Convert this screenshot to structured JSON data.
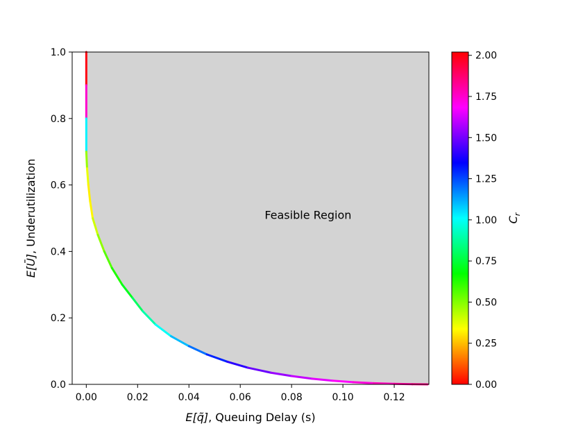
{
  "chart_data": {
    "type": "area",
    "xlabel_prefix": "E[q̃]",
    "xlabel_suffix": ", Queuing Delay (s)",
    "ylabel_prefix": "E[Ū]",
    "ylabel_suffix": ", Underutilization",
    "xlim": [
      -0.0055,
      0.1335
    ],
    "ylim": [
      0.0,
      1.0
    ],
    "x_ticks": [
      0.0,
      0.02,
      0.04,
      0.06,
      0.08,
      0.1,
      0.12
    ],
    "x_tick_labels": [
      "0.00",
      "0.02",
      "0.04",
      "0.06",
      "0.08",
      "0.10",
      "0.12"
    ],
    "y_ticks": [
      0.0,
      0.2,
      0.4,
      0.6,
      0.8,
      1.0
    ],
    "y_tick_labels": [
      "0.0",
      "0.2",
      "0.4",
      "0.6",
      "0.8",
      "1.0"
    ],
    "annotation": {
      "text": "Feasible Region",
      "x": 0.0695,
      "y": 0.51
    },
    "region_fill": "#d3d3d3",
    "grid": false,
    "series": [
      {
        "x": [
          0.0,
          0.0,
          0.0,
          0.0,
          0.0003,
          0.0008,
          0.0015,
          0.0025,
          0.0045,
          0.007,
          0.01,
          0.014,
          0.018,
          0.022,
          0.027,
          0.033,
          0.04,
          0.047,
          0.055,
          0.063,
          0.072,
          0.08,
          0.088,
          0.096,
          0.104,
          0.112,
          0.12,
          0.127,
          0.133
        ],
        "y": [
          1.0,
          0.9,
          0.8,
          0.7,
          0.65,
          0.6,
          0.55,
          0.5,
          0.45,
          0.4,
          0.35,
          0.3,
          0.26,
          0.22,
          0.18,
          0.145,
          0.115,
          0.09,
          0.068,
          0.05,
          0.035,
          0.025,
          0.017,
          0.011,
          0.0065,
          0.0035,
          0.0015,
          0.0004,
          0.0
        ],
        "c": [
          2.0,
          2.0,
          1.5,
          0.55,
          0.4,
          0.33,
          0.3,
          0.35,
          0.45,
          0.52,
          0.6,
          0.67,
          0.75,
          0.85,
          0.95,
          1.05,
          1.15,
          1.25,
          1.35,
          1.45,
          1.52,
          1.58,
          1.63,
          1.67,
          1.71,
          1.75,
          1.79,
          1.83,
          1.85
        ]
      }
    ],
    "colorbar": {
      "label_base": "C",
      "label_sub": "r",
      "range": [
        0.0,
        2.02
      ],
      "ticks": [
        0.0,
        0.25,
        0.5,
        0.75,
        1.0,
        1.25,
        1.5,
        1.75,
        2.0
      ],
      "tick_labels": [
        "0.00",
        "0.25",
        "0.50",
        "0.75",
        "1.00",
        "1.25",
        "1.50",
        "1.75",
        "2.00"
      ],
      "colormap": [
        "#ff0000",
        "#ff8000",
        "#ffff00",
        "#80ff00",
        "#00ff00",
        "#00ff80",
        "#00ffff",
        "#0080ff",
        "#0000ff",
        "#8000ff",
        "#ff00ff",
        "#ff0080",
        "#ff0000"
      ]
    }
  }
}
